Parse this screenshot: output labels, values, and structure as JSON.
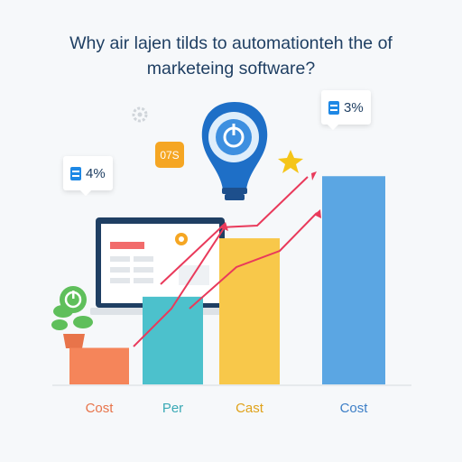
{
  "title_lines": [
    "Why air lajen tilds to automationteh the of",
    "marketeing software?"
  ],
  "badges": {
    "left": "4%",
    "right": "3%",
    "orange": "07S"
  },
  "colors": {
    "cost_1": "#f5855a",
    "per": "#4cc1cc",
    "cast": "#f8c84a",
    "cost_2": "#5ba6e3",
    "arrows": "#e93a5b",
    "title": "#1f3f63"
  },
  "chart_data": {
    "type": "bar",
    "categories": [
      "Cost",
      "Per",
      "Cast",
      "Cost"
    ],
    "values": [
      10,
      24,
      40,
      57
    ],
    "ylim": [
      0,
      62
    ],
    "grid": false,
    "title": "",
    "xlabel": "",
    "ylabel": ""
  }
}
